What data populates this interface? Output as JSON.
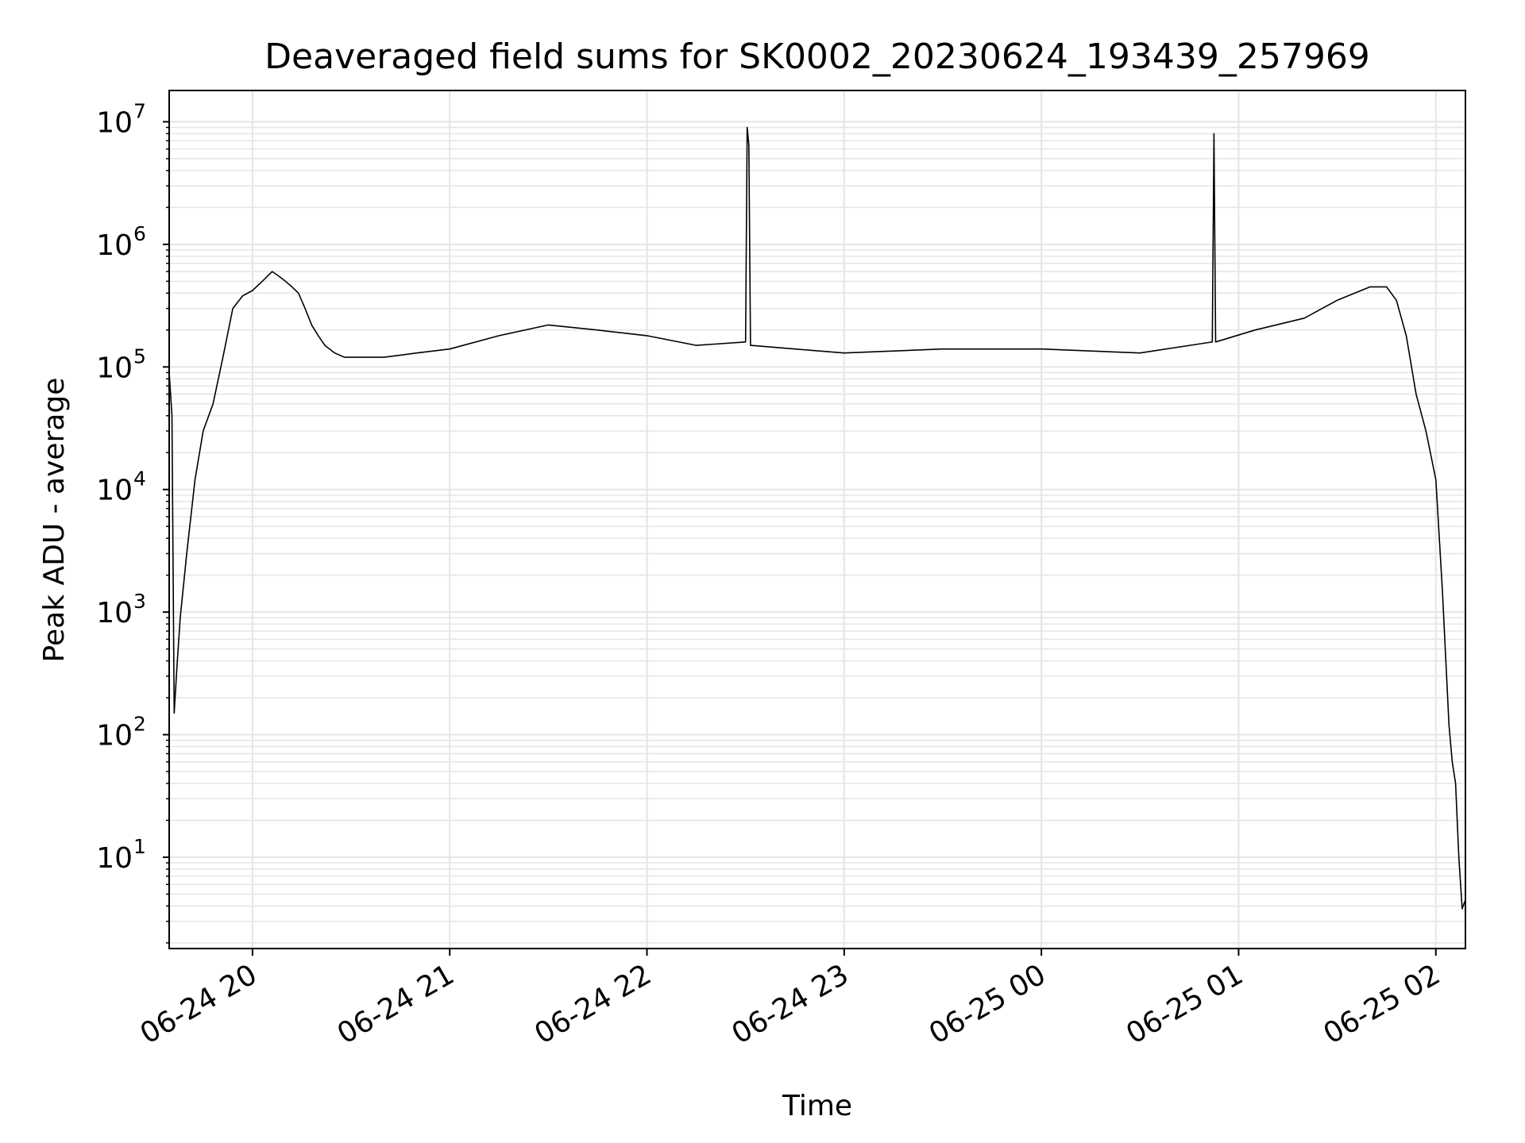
{
  "chart_data": {
    "type": "line",
    "title": "Deaveraged field sums for SK0002_20230624_193439_257969",
    "xlabel": "Time",
    "ylabel": "Peak ADU - average",
    "y_scale": "log",
    "ylim": [
      1.8,
      18000000
    ],
    "xlim": [
      "2023-06-24 19:34:39",
      "2023-06-25 02:09:00"
    ],
    "grid": true,
    "line_color": "#000000",
    "grid_color": "#e5e5e5",
    "x_ticks": [
      {
        "label": "06-24 20",
        "time": "2023-06-24 20:00"
      },
      {
        "label": "06-24 21",
        "time": "2023-06-24 21:00"
      },
      {
        "label": "06-24 22",
        "time": "2023-06-24 22:00"
      },
      {
        "label": "06-24 23",
        "time": "2023-06-24 23:00"
      },
      {
        "label": "06-25 00",
        "time": "2023-06-25 00:00"
      },
      {
        "label": "06-25 01",
        "time": "2023-06-25 01:00"
      },
      {
        "label": "06-25 02",
        "time": "2023-06-25 02:00"
      }
    ],
    "y_ticks": [
      {
        "base": "10",
        "exp": "1",
        "value": 10
      },
      {
        "base": "10",
        "exp": "2",
        "value": 100
      },
      {
        "base": "10",
        "exp": "3",
        "value": 1000
      },
      {
        "base": "10",
        "exp": "4",
        "value": 10000
      },
      {
        "base": "10",
        "exp": "5",
        "value": 100000
      },
      {
        "base": "10",
        "exp": "6",
        "value": 1000000
      },
      {
        "base": "10",
        "exp": "7",
        "value": 10000000
      }
    ],
    "series": [
      {
        "x": [
          "2023-06-24 19:34:39",
          "2023-06-24 19:35:30",
          "2023-06-24 19:36:10",
          "2023-06-24 19:37:00",
          "2023-06-24 19:38:00",
          "2023-06-24 19:40:00",
          "2023-06-24 19:42:30",
          "2023-06-24 19:45:00",
          "2023-06-24 19:48:00",
          "2023-06-24 19:51:00",
          "2023-06-24 19:54:00",
          "2023-06-24 19:57:00",
          "2023-06-24 20:00:00",
          "2023-06-24 20:03:00",
          "2023-06-24 20:06:00",
          "2023-06-24 20:08:00",
          "2023-06-24 20:10:00",
          "2023-06-24 20:12:00",
          "2023-06-24 20:14:00",
          "2023-06-24 20:16:00",
          "2023-06-24 20:18:00",
          "2023-06-24 20:20:00",
          "2023-06-24 20:22:00",
          "2023-06-24 20:25:00",
          "2023-06-24 20:28:00",
          "2023-06-24 20:31:00",
          "2023-06-24 20:35:00",
          "2023-06-24 20:40:00",
          "2023-06-24 20:50:00",
          "2023-06-24 21:00:00",
          "2023-06-24 21:15:00",
          "2023-06-24 21:30:00",
          "2023-06-24 21:45:00",
          "2023-06-24 22:00:00",
          "2023-06-24 22:15:00",
          "2023-06-24 22:30:00",
          "2023-06-24 22:30:30",
          "2023-06-24 22:31:00",
          "2023-06-24 22:31:30",
          "2023-06-24 22:45:00",
          "2023-06-24 23:00:00",
          "2023-06-24 23:30:00",
          "2023-06-25 00:00:00",
          "2023-06-25 00:30:00",
          "2023-06-25 00:52:00",
          "2023-06-25 00:52:30",
          "2023-06-25 00:53:00",
          "2023-06-25 01:05:00",
          "2023-06-25 01:20:00",
          "2023-06-25 01:30:00",
          "2023-06-25 01:40:00",
          "2023-06-25 01:45:00",
          "2023-06-25 01:48:00",
          "2023-06-25 01:51:00",
          "2023-06-25 01:54:00",
          "2023-06-25 01:57:00",
          "2023-06-25 02:00:00",
          "2023-06-25 02:02:00",
          "2023-06-25 02:04:00",
          "2023-06-25 02:05:00",
          "2023-06-25 02:06:00",
          "2023-06-25 02:07:00",
          "2023-06-25 02:08:00",
          "2023-06-25 02:09:00"
        ],
        "y": [
          90000,
          40000,
          150,
          350,
          900,
          3000,
          12000,
          30000,
          50000,
          120000,
          300000,
          380000,
          420000,
          500000,
          600000,
          550000,
          500000,
          450000,
          400000,
          300000,
          220000,
          180000,
          150000,
          130000,
          120000,
          120000,
          120000,
          120000,
          130000,
          140000,
          180000,
          220000,
          200000,
          180000,
          150000,
          160000,
          9000000,
          6500000,
          150000,
          140000,
          130000,
          140000,
          140000,
          130000,
          160000,
          8000000,
          160000,
          200000,
          250000,
          350000,
          450000,
          450000,
          350000,
          180000,
          60000,
          30000,
          12000,
          1500,
          120,
          60,
          40,
          10,
          3.8,
          4.5
        ]
      }
    ]
  }
}
